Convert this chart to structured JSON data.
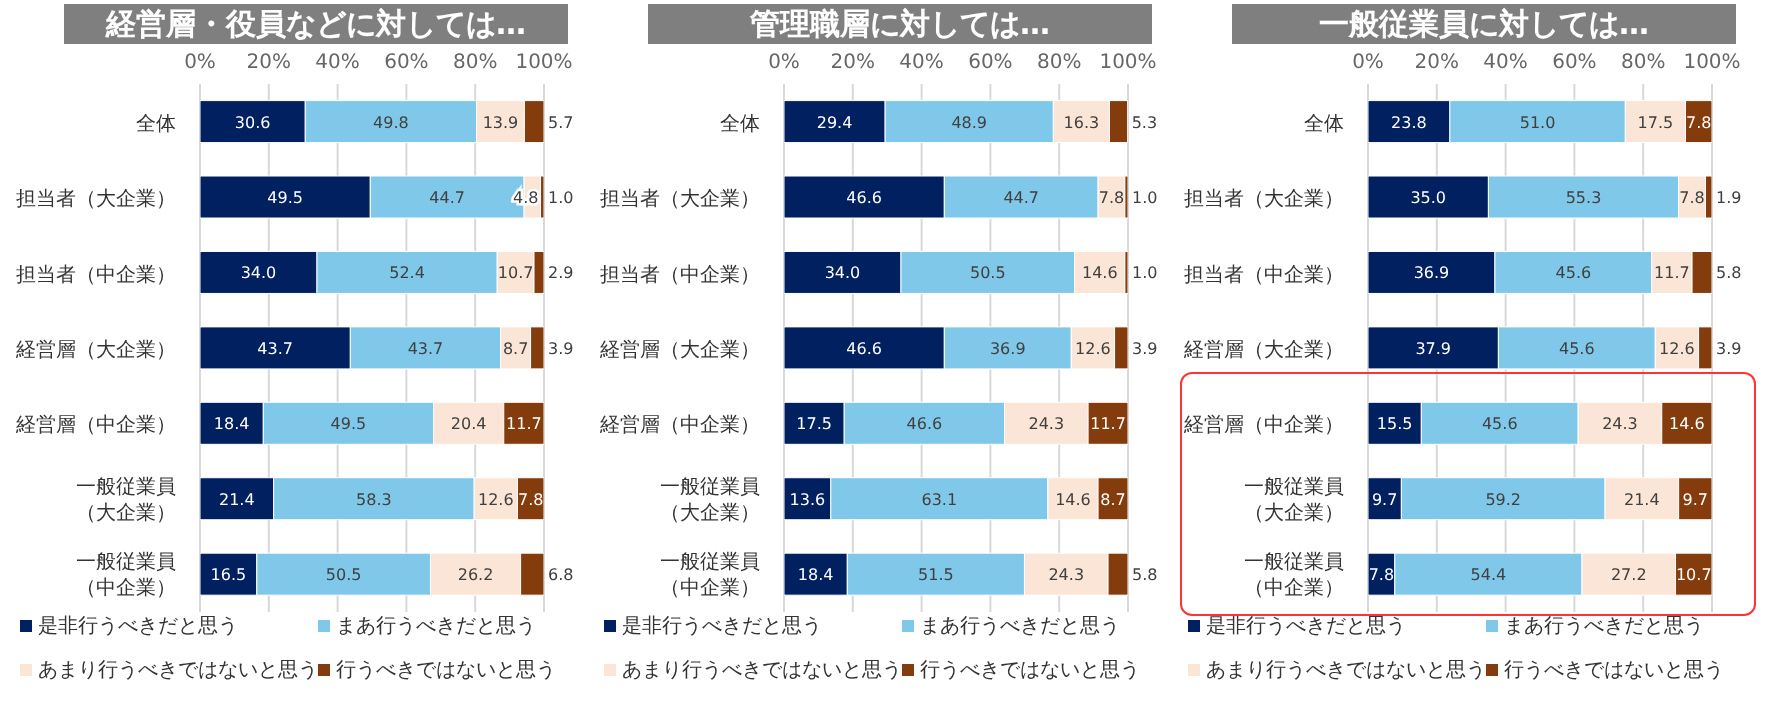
{
  "chart_data": [
    {
      "type": "bar",
      "orientation": "horizontal",
      "stacked": true,
      "title": "経営層・役員などに対しては…",
      "categories": [
        "全体",
        "担当者（大企業）",
        "担当者（中企業）",
        "経営層（大企業）",
        "経営層（中企業）",
        "一般従業員（大企業）",
        "一般従業員（中企業）"
      ],
      "series": [
        {
          "name": "是非行うべきだと思う",
          "color": "#002060",
          "values": [
            30.6,
            49.5,
            34.0,
            43.7,
            18.4,
            21.4,
            16.5
          ],
          "value_labels": [
            "30.6",
            "49.5",
            "34.0",
            "43.7",
            "18.4",
            "21.4",
            "16.5"
          ]
        },
        {
          "name": "まあ行うべきだと思う",
          "color": "#7fc8ea",
          "values": [
            49.8,
            44.7,
            52.4,
            43.7,
            49.5,
            58.3,
            50.5
          ],
          "value_labels": [
            "49.8",
            "44.7",
            "52.4",
            "43.7",
            "49.5",
            "58.3",
            "50.5"
          ]
        },
        {
          "name": "あまり行うべきではないと思う",
          "color": "#fbe5d6",
          "values": [
            13.9,
            4.8,
            10.7,
            8.7,
            20.4,
            12.6,
            26.2
          ],
          "value_labels": [
            "13.9",
            "4.8",
            "10.7",
            "8.7",
            "20.4",
            "12.6",
            "26.2"
          ]
        },
        {
          "name": "行うべきではないと思う",
          "color": "#843c0c",
          "values": [
            5.7,
            1.0,
            2.9,
            3.9,
            11.7,
            7.8,
            6.8
          ],
          "value_labels": [
            "5.7",
            "1.0",
            "2.9",
            "3.9",
            "11.7",
            "7.8",
            "6.8"
          ]
        }
      ],
      "xlim": [
        0,
        100
      ],
      "xticks": [
        {
          "value": 0,
          "label": "0%"
        },
        {
          "value": 20,
          "label": "20%"
        },
        {
          "value": 40,
          "label": "40%"
        },
        {
          "value": 60,
          "label": "60%"
        },
        {
          "value": 80,
          "label": "80%"
        },
        {
          "value": 100,
          "label": "100%"
        }
      ],
      "grid": "x",
      "legend": "bottom"
    },
    {
      "type": "bar",
      "orientation": "horizontal",
      "stacked": true,
      "title": "管理職層に対しては…",
      "categories": [
        "全体",
        "担当者（大企業）",
        "担当者（中企業）",
        "経営層（大企業）",
        "経営層（中企業）",
        "一般従業員（大企業）",
        "一般従業員（中企業）"
      ],
      "series": [
        {
          "name": "是非行うべきだと思う",
          "color": "#002060",
          "values": [
            29.4,
            46.6,
            34.0,
            46.6,
            17.5,
            13.6,
            18.4
          ],
          "value_labels": [
            "29.4",
            "46.6",
            "34.0",
            "46.6",
            "17.5",
            "13.6",
            "18.4"
          ]
        },
        {
          "name": "まあ行うべきだと思う",
          "color": "#7fc8ea",
          "values": [
            48.9,
            44.7,
            50.5,
            36.9,
            46.6,
            63.1,
            51.5
          ],
          "value_labels": [
            "48.9",
            "44.7",
            "50.5",
            "36.9",
            "46.6",
            "63.1",
            "51.5"
          ]
        },
        {
          "name": "あまり行うべきではないと思う",
          "color": "#fbe5d6",
          "values": [
            16.3,
            7.8,
            14.6,
            12.6,
            24.3,
            14.6,
            24.3
          ],
          "value_labels": [
            "16.3",
            "7.8",
            "14.6",
            "12.6",
            "24.3",
            "14.6",
            "24.3"
          ]
        },
        {
          "name": "行うべきではないと思う",
          "color": "#843c0c",
          "values": [
            5.3,
            1.0,
            1.0,
            3.9,
            11.7,
            8.7,
            5.8
          ],
          "value_labels": [
            "5.3",
            "1.0",
            "1.0",
            "3.9",
            "11.7",
            "8.7",
            "5.8"
          ]
        }
      ],
      "xlim": [
        0,
        100
      ],
      "xticks": [
        {
          "value": 0,
          "label": "0%"
        },
        {
          "value": 20,
          "label": "20%"
        },
        {
          "value": 40,
          "label": "40%"
        },
        {
          "value": 60,
          "label": "60%"
        },
        {
          "value": 80,
          "label": "80%"
        },
        {
          "value": 100,
          "label": "100%"
        }
      ],
      "grid": "x",
      "legend": "bottom"
    },
    {
      "type": "bar",
      "orientation": "horizontal",
      "stacked": true,
      "title": "一般従業員に対しては…",
      "categories": [
        "全体",
        "担当者（大企業）",
        "担当者（中企業）",
        "経営層（大企業）",
        "経営層（中企業）",
        "一般従業員（大企業）",
        "一般従業員（中企業）"
      ],
      "series": [
        {
          "name": "是非行うべきだと思う",
          "color": "#002060",
          "values": [
            23.8,
            35.0,
            36.9,
            37.9,
            15.5,
            9.7,
            7.8
          ],
          "value_labels": [
            "23.8",
            "35.0",
            "36.9",
            "37.9",
            "15.5",
            "9.7",
            "7.8"
          ]
        },
        {
          "name": "まあ行うべきだと思う",
          "color": "#7fc8ea",
          "values": [
            51.0,
            55.3,
            45.6,
            45.6,
            45.6,
            59.2,
            54.4
          ],
          "value_labels": [
            "51.0",
            "55.3",
            "45.6",
            "45.6",
            "45.6",
            "59.2",
            "54.4"
          ]
        },
        {
          "name": "あまり行うべきではないと思う",
          "color": "#fbe5d6",
          "values": [
            17.5,
            7.8,
            11.7,
            12.6,
            24.3,
            21.4,
            27.2
          ],
          "value_labels": [
            "17.5",
            "7.8",
            "11.7",
            "12.6",
            "24.3",
            "21.4",
            "27.2"
          ]
        },
        {
          "name": "行うべきではないと思う",
          "color": "#843c0c",
          "values": [
            7.8,
            1.9,
            5.8,
            3.9,
            14.6,
            9.7,
            10.7
          ],
          "value_labels": [
            "7.8",
            "1.9",
            "5.8",
            "3.9",
            "14.6",
            "9.7",
            "10.7"
          ]
        }
      ],
      "xlim": [
        0,
        100
      ],
      "xticks": [
        {
          "value": 0,
          "label": "0%"
        },
        {
          "value": 20,
          "label": "20%"
        },
        {
          "value": 40,
          "label": "40%"
        },
        {
          "value": 60,
          "label": "60%"
        },
        {
          "value": 80,
          "label": "80%"
        },
        {
          "value": 100,
          "label": "100%"
        }
      ],
      "grid": "x",
      "legend": "bottom"
    }
  ]
}
